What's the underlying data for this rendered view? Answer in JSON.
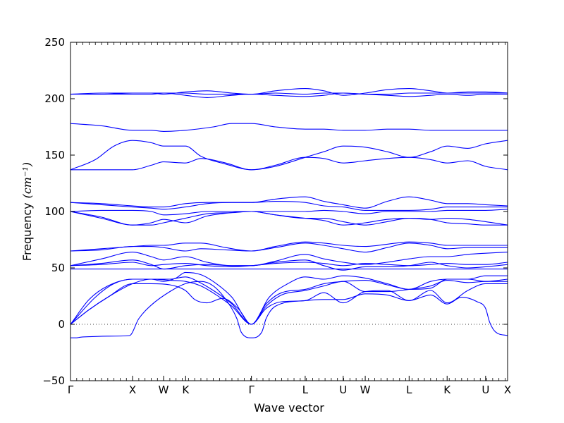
{
  "chart_data": {
    "type": "line",
    "xlabel": "Wave vector",
    "ylabel": "Frequency",
    "ylabel_unit": "(cm⁻¹)",
    "ylim": [
      -50,
      250
    ],
    "yticks": [
      -50,
      0,
      50,
      100,
      150,
      200,
      250
    ],
    "ytick_labels": [
      "−50",
      "0",
      "50",
      "100",
      "150",
      "200",
      "250"
    ],
    "grid": false,
    "zero_line": "dotted",
    "x_points": [
      {
        "label": "Γ",
        "x": 0.0
      },
      {
        "label": "X",
        "x": 1.0
      },
      {
        "label": "W",
        "x": 1.5
      },
      {
        "label": "K",
        "x": 1.854
      },
      {
        "label": "Γ",
        "x": 2.914
      },
      {
        "label": "L",
        "x": 3.78
      },
      {
        "label": "U",
        "x": 4.392
      },
      {
        "label": "W",
        "x": 4.747
      },
      {
        "label": "L",
        "x": 5.454
      },
      {
        "label": "K",
        "x": 6.066
      },
      {
        "label": "U",
        "x": 6.686
      },
      {
        "label": "X",
        "x": 7.04
      }
    ],
    "series_color": "#0000ff",
    "bands": [
      {
        "x": [
          0,
          0.1,
          0.15,
          0.3,
          0.6,
          0.95,
          1.1,
          1.3,
          1.6,
          1.85,
          2.1,
          2.3,
          2.5,
          2.68,
          2.75,
          2.914,
          3.08,
          3.15,
          3.3,
          3.78,
          4.08,
          4.392,
          4.747,
          5.1,
          5.454,
          5.8,
          6.066,
          6.3,
          6.55,
          6.686,
          6.75,
          6.85,
          7.04
        ],
        "y": [
          -12,
          -12,
          -11.5,
          -11,
          -10.5,
          -10,
          5,
          17,
          29,
          36,
          38,
          34,
          22,
          5,
          -7,
          -12,
          -7,
          5,
          16,
          21,
          22,
          22,
          27,
          26,
          21,
          26,
          18,
          24,
          20,
          14,
          2,
          -7,
          -10
        ]
      },
      {
        "x": [
          0,
          0.3,
          0.6,
          1.0,
          1.3,
          1.6,
          1.85,
          2.0,
          2.2,
          2.45,
          2.7,
          2.914,
          3.15,
          3.4,
          3.78,
          4.08,
          4.392,
          4.747,
          5.1,
          5.454,
          5.8,
          6.066,
          6.4,
          6.686,
          7.04
        ],
        "y": [
          0,
          13,
          24,
          36,
          36,
          35,
          30,
          22,
          19,
          23,
          14,
          0,
          14,
          20,
          21,
          28,
          19,
          29,
          30,
          21,
          30,
          19,
          30,
          36,
          36
        ]
      },
      {
        "x": [
          0,
          0.3,
          0.6,
          1.0,
          1.3,
          1.6,
          1.85,
          2.1,
          2.35,
          2.6,
          2.914,
          3.15,
          3.4,
          3.78,
          4.08,
          4.392,
          4.747,
          5.1,
          5.454,
          5.8,
          6.066,
          6.4,
          6.686,
          7.04
        ],
        "y": [
          0,
          13,
          24,
          36,
          40,
          39,
          38,
          34,
          26,
          16,
          0,
          16,
          26,
          30,
          34,
          38,
          29,
          29,
          31,
          34,
          39,
          37,
          38,
          38
        ]
      },
      {
        "x": [
          0,
          0.3,
          0.6,
          1.0,
          1.3,
          1.6,
          1.85,
          2.05,
          2.3,
          2.6,
          2.914,
          3.15,
          3.4,
          3.78,
          4.08,
          4.392,
          4.747,
          5.1,
          5.454,
          5.8,
          6.066,
          6.4,
          6.686,
          7.04
        ],
        "y": [
          0,
          22,
          34,
          40,
          40,
          40,
          42,
          38,
          30,
          18,
          0,
          18,
          28,
          31,
          36,
          38,
          39,
          35,
          31,
          32,
          40,
          40,
          38,
          40
        ]
      },
      {
        "x": [
          0,
          0.4,
          0.7,
          1.0,
          1.3,
          1.5,
          1.7,
          1.85,
          2.1,
          2.35,
          2.6,
          2.914,
          3.2,
          3.5,
          3.78,
          4.08,
          4.392,
          4.747,
          5.1,
          5.454,
          5.8,
          6.066,
          6.4,
          6.686,
          7.04
        ],
        "y": [
          0,
          24,
          36,
          40,
          40,
          38,
          41,
          46,
          44,
          36,
          24,
          0,
          24,
          36,
          42,
          40,
          43,
          41,
          36,
          31,
          38,
          40,
          40,
          43,
          43
        ]
      },
      {
        "x": [
          0,
          0.5,
          1.0,
          1.3,
          1.5,
          1.7,
          1.85,
          2.1,
          2.5,
          2.914,
          3.3,
          3.78,
          4.08,
          4.392,
          4.747,
          5.1,
          5.454,
          5.8,
          6.066,
          6.4,
          6.686,
          7.04
        ],
        "y": [
          49,
          49,
          49,
          49,
          49,
          49,
          49,
          49,
          49,
          49,
          49,
          49,
          49,
          49,
          49,
          49,
          49,
          49,
          49,
          49,
          49,
          49
        ]
      },
      {
        "x": [
          0,
          0.5,
          1.0,
          1.3,
          1.5,
          1.85,
          2.2,
          2.6,
          2.914,
          3.3,
          3.78,
          4.08,
          4.392,
          4.747,
          5.1,
          5.454,
          5.8,
          6.066,
          6.4,
          6.686,
          7.04
        ],
        "y": [
          52,
          53,
          55,
          52,
          53,
          54,
          52,
          51,
          52,
          54,
          55,
          54,
          52,
          54,
          53,
          52,
          53,
          54,
          53,
          53,
          55
        ]
      },
      {
        "x": [
          0,
          0.5,
          1.0,
          1.3,
          1.5,
          1.85,
          2.2,
          2.6,
          2.914,
          3.3,
          3.78,
          4.08,
          4.392,
          4.747,
          5.1,
          5.454,
          5.8,
          6.066,
          6.4,
          6.686,
          7.04
        ],
        "y": [
          52,
          54,
          57,
          53,
          49,
          52,
          53,
          52,
          52,
          55,
          57,
          52,
          48,
          51,
          51,
          52,
          55,
          52,
          50,
          51,
          53
        ]
      },
      {
        "x": [
          0,
          0.5,
          1.0,
          1.3,
          1.5,
          1.85,
          2.2,
          2.6,
          2.914,
          3.3,
          3.78,
          4.08,
          4.392,
          4.747,
          5.1,
          5.454,
          5.8,
          6.066,
          6.4,
          6.686,
          7.04
        ],
        "y": [
          52,
          58,
          64,
          60,
          57,
          60,
          55,
          52,
          52,
          56,
          62,
          58,
          55,
          53,
          55,
          58,
          60,
          60,
          62,
          63,
          64
        ]
      },
      {
        "x": [
          0,
          0.5,
          1.0,
          1.3,
          1.5,
          1.85,
          2.1,
          2.5,
          2.914,
          3.3,
          3.78,
          4.08,
          4.392,
          4.747,
          5.1,
          5.454,
          5.8,
          6.066,
          6.4,
          6.686,
          7.04
        ],
        "y": [
          65,
          66,
          69,
          69,
          68,
          65,
          67,
          66,
          65,
          68,
          72,
          70,
          67,
          64,
          68,
          72,
          70,
          67,
          68,
          68,
          68
        ]
      },
      {
        "x": [
          0,
          0.5,
          1.0,
          1.3,
          1.5,
          1.85,
          2.1,
          2.5,
          2.914,
          3.3,
          3.78,
          4.08,
          4.392,
          4.747,
          5.1,
          5.454,
          5.8,
          6.066,
          6.4,
          6.686,
          7.04
        ],
        "y": [
          65,
          67,
          69,
          70,
          70,
          72,
          72,
          68,
          65,
          69,
          73,
          72,
          70,
          69,
          71,
          73,
          72,
          70,
          70,
          70,
          70
        ]
      },
      {
        "x": [
          0,
          0.5,
          1.0,
          1.3,
          1.5,
          1.85,
          2.2,
          2.6,
          2.914,
          3.3,
          3.78,
          4.08,
          4.392,
          4.747,
          5.1,
          5.454,
          5.8,
          6.066,
          6.4,
          6.686,
          7.04
        ],
        "y": [
          100,
          94,
          88,
          88,
          90,
          94,
          98,
          99,
          100,
          97,
          94,
          92,
          88,
          90,
          93,
          94,
          93,
          90,
          89,
          88,
          88
        ]
      },
      {
        "x": [
          0,
          0.5,
          1.0,
          1.3,
          1.5,
          1.85,
          2.2,
          2.6,
          2.914,
          3.3,
          3.78,
          4.08,
          4.392,
          4.747,
          5.1,
          5.454,
          5.8,
          6.066,
          6.4,
          6.686,
          7.04
        ],
        "y": [
          100,
          95,
          88,
          90,
          93,
          90,
          96,
          99,
          100,
          97,
          94,
          94,
          91,
          88,
          91,
          94,
          93,
          94,
          93,
          91,
          88
        ]
      },
      {
        "x": [
          0,
          0.5,
          1.0,
          1.3,
          1.5,
          1.85,
          2.2,
          2.6,
          2.914,
          3.3,
          3.78,
          4.08,
          4.392,
          4.747,
          5.1,
          5.454,
          5.8,
          6.066,
          6.4,
          6.686,
          7.04
        ],
        "y": [
          100,
          101,
          101,
          100,
          97,
          98,
          100,
          100,
          100,
          100,
          100,
          101,
          100,
          98,
          100,
          100,
          100,
          101,
          101,
          101,
          102
        ]
      },
      {
        "x": [
          0,
          0.5,
          1.0,
          1.3,
          1.5,
          1.85,
          2.2,
          2.6,
          2.914,
          3.3,
          3.78,
          4.08,
          4.392,
          4.747,
          5.1,
          5.454,
          5.8,
          6.066,
          6.4,
          6.686,
          7.04
        ],
        "y": [
          108,
          106,
          104,
          103,
          102,
          104,
          107,
          108,
          108,
          109,
          108,
          105,
          104,
          101,
          101,
          101,
          102,
          104,
          104,
          104,
          104
        ]
      },
      {
        "x": [
          0,
          0.5,
          1.0,
          1.3,
          1.5,
          1.85,
          2.2,
          2.6,
          2.914,
          3.3,
          3.78,
          4.08,
          4.392,
          4.747,
          5.1,
          5.454,
          5.8,
          6.066,
          6.4,
          6.686,
          7.04
        ],
        "y": [
          108,
          107,
          105,
          104,
          104,
          107,
          108,
          108,
          108,
          111,
          113,
          109,
          106,
          103,
          109,
          113,
          110,
          107,
          107,
          106,
          105
        ]
      },
      {
        "x": [
          0,
          0.5,
          1.0,
          1.3,
          1.5,
          1.85,
          2.1,
          2.5,
          2.914,
          3.3,
          3.78,
          4.08,
          4.392,
          4.747,
          5.1,
          5.454,
          5.8,
          6.066,
          6.4,
          6.686,
          7.04
        ],
        "y": [
          137,
          137,
          137,
          141,
          144,
          143,
          147,
          143,
          137,
          141,
          148,
          147,
          143,
          145,
          147,
          148,
          146,
          143,
          145,
          140,
          137
        ]
      },
      {
        "x": [
          0,
          0.4,
          0.7,
          1.0,
          1.3,
          1.5,
          1.85,
          2.1,
          2.5,
          2.914,
          3.3,
          3.78,
          4.08,
          4.392,
          4.747,
          5.1,
          5.454,
          5.8,
          6.066,
          6.4,
          6.686,
          7.04
        ],
        "y": [
          137,
          146,
          158,
          163,
          161,
          158,
          158,
          149,
          142,
          137,
          140,
          148,
          153,
          158,
          157,
          153,
          148,
          153,
          158,
          156,
          160,
          163
        ]
      },
      {
        "x": [
          0,
          0.5,
          1.0,
          1.3,
          1.5,
          1.85,
          2.3,
          2.6,
          2.914,
          3.3,
          3.78,
          4.08,
          4.392,
          4.747,
          5.1,
          5.454,
          5.8,
          6.066,
          6.4,
          6.686,
          7.04
        ],
        "y": [
          178,
          176,
          172,
          172,
          171,
          172,
          175,
          178,
          178,
          175,
          173,
          173,
          172,
          172,
          173,
          173,
          172,
          172,
          172,
          172,
          172
        ]
      },
      {
        "x": [
          0,
          0.5,
          1.0,
          1.3,
          1.5,
          1.85,
          2.2,
          2.6,
          2.914,
          3.3,
          3.78,
          4.08,
          4.392,
          4.747,
          5.1,
          5.454,
          5.8,
          6.066,
          6.4,
          6.686,
          7.04
        ],
        "y": [
          204,
          204,
          204,
          204,
          205,
          203,
          201,
          203,
          204,
          203,
          202,
          203,
          205,
          204,
          203,
          202,
          203,
          204,
          203,
          204,
          204
        ]
      },
      {
        "x": [
          0,
          0.5,
          1.0,
          1.3,
          1.5,
          1.85,
          2.2,
          2.6,
          2.914,
          3.3,
          3.78,
          4.08,
          4.392,
          4.747,
          5.1,
          5.454,
          5.8,
          6.066,
          6.4,
          6.686,
          7.04
        ],
        "y": [
          204,
          204,
          205,
          205,
          205,
          205,
          204,
          204,
          204,
          205,
          204,
          205,
          205,
          204,
          204,
          205,
          205,
          205,
          205,
          205,
          205
        ]
      },
      {
        "x": [
          0,
          0.5,
          1.0,
          1.3,
          1.5,
          1.85,
          2.2,
          2.6,
          2.914,
          3.3,
          3.78,
          4.08,
          4.392,
          4.747,
          5.1,
          5.454,
          5.8,
          6.066,
          6.4,
          6.686,
          7.04
        ],
        "y": [
          204,
          205,
          205,
          205,
          204,
          206,
          207,
          205,
          204,
          207,
          209,
          207,
          203,
          205,
          208,
          209,
          207,
          205,
          206,
          206,
          205
        ]
      }
    ]
  }
}
